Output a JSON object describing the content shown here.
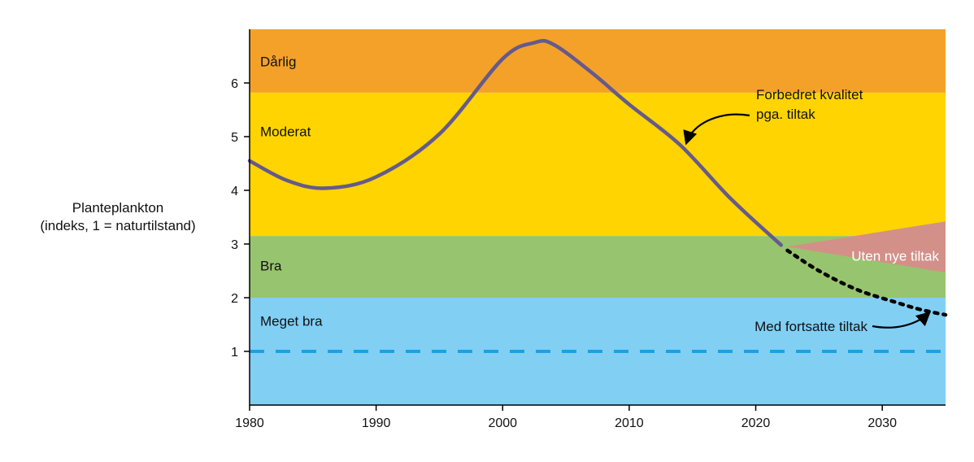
{
  "chart_data": {
    "type": "line",
    "title": "",
    "ylabel_lines": [
      "Planteplankton",
      "(indeks, 1 = naturtilstand)"
    ],
    "xlabel": "",
    "xlim": [
      1980,
      2035
    ],
    "ylim": [
      0,
      7
    ],
    "x_ticks": [
      1980,
      1990,
      2000,
      2010,
      2020,
      2030
    ],
    "y_ticks": [
      1,
      2,
      3,
      4,
      5,
      6
    ],
    "grid": false,
    "bands": [
      {
        "label": "Meget bra",
        "from": 0,
        "to": 2.0,
        "color": "#82cff4"
      },
      {
        "label": "Bra",
        "from": 2.0,
        "to": 3.15,
        "color": "#97c46e"
      },
      {
        "label": "Moderat",
        "from": 3.15,
        "to": 5.82,
        "color": "#ffd400"
      },
      {
        "label": "Dårlig",
        "from": 5.82,
        "to": 7.0,
        "color": "#f4a12a"
      }
    ],
    "reference_line": {
      "y": 1,
      "style": "dashed",
      "color": "#1ba1e2"
    },
    "series": [
      {
        "style": "solid",
        "color": "#655a8c",
        "points": [
          [
            1980,
            4.55
          ],
          [
            1983,
            4.18
          ],
          [
            1986,
            4.04
          ],
          [
            1990,
            4.25
          ],
          [
            1995,
            5.05
          ],
          [
            2000,
            6.45
          ],
          [
            2002.5,
            6.75
          ],
          [
            2004,
            6.72
          ],
          [
            2007,
            6.2
          ],
          [
            2010,
            5.6
          ],
          [
            2014,
            4.85
          ],
          [
            2018,
            3.85
          ],
          [
            2022,
            2.98
          ]
        ]
      },
      {
        "name": "Med fortsatte tiltak",
        "style": "dotted",
        "color": "#000000",
        "points": [
          [
            2022.5,
            2.88
          ],
          [
            2025,
            2.5
          ],
          [
            2028,
            2.15
          ],
          [
            2031,
            1.92
          ],
          [
            2033,
            1.78
          ],
          [
            2035,
            1.68
          ]
        ]
      }
    ],
    "wedge": {
      "name": "Uten nye tiltak",
      "color": "#d39089",
      "from": [
        2022.5,
        2.95
      ],
      "to_upper": [
        2035,
        3.42
      ],
      "to_lower": [
        2035,
        2.47
      ]
    },
    "annotations": [
      {
        "lines": [
          "Forbedret kvalitet",
          "pga. tiltak"
        ],
        "at": [
          2020.8,
          5.7
        ],
        "arrow_to": [
          2014.4,
          4.83
        ]
      },
      {
        "lines": [
          "Med fortsatte tiltak"
        ],
        "at": [
          2014.4,
          1.47
        ],
        "arrow_to": [
          2033.8,
          1.77
        ]
      },
      {
        "lines": [
          "Uten nye tiltak"
        ],
        "at": [
          2028,
          2.9
        ]
      }
    ]
  }
}
